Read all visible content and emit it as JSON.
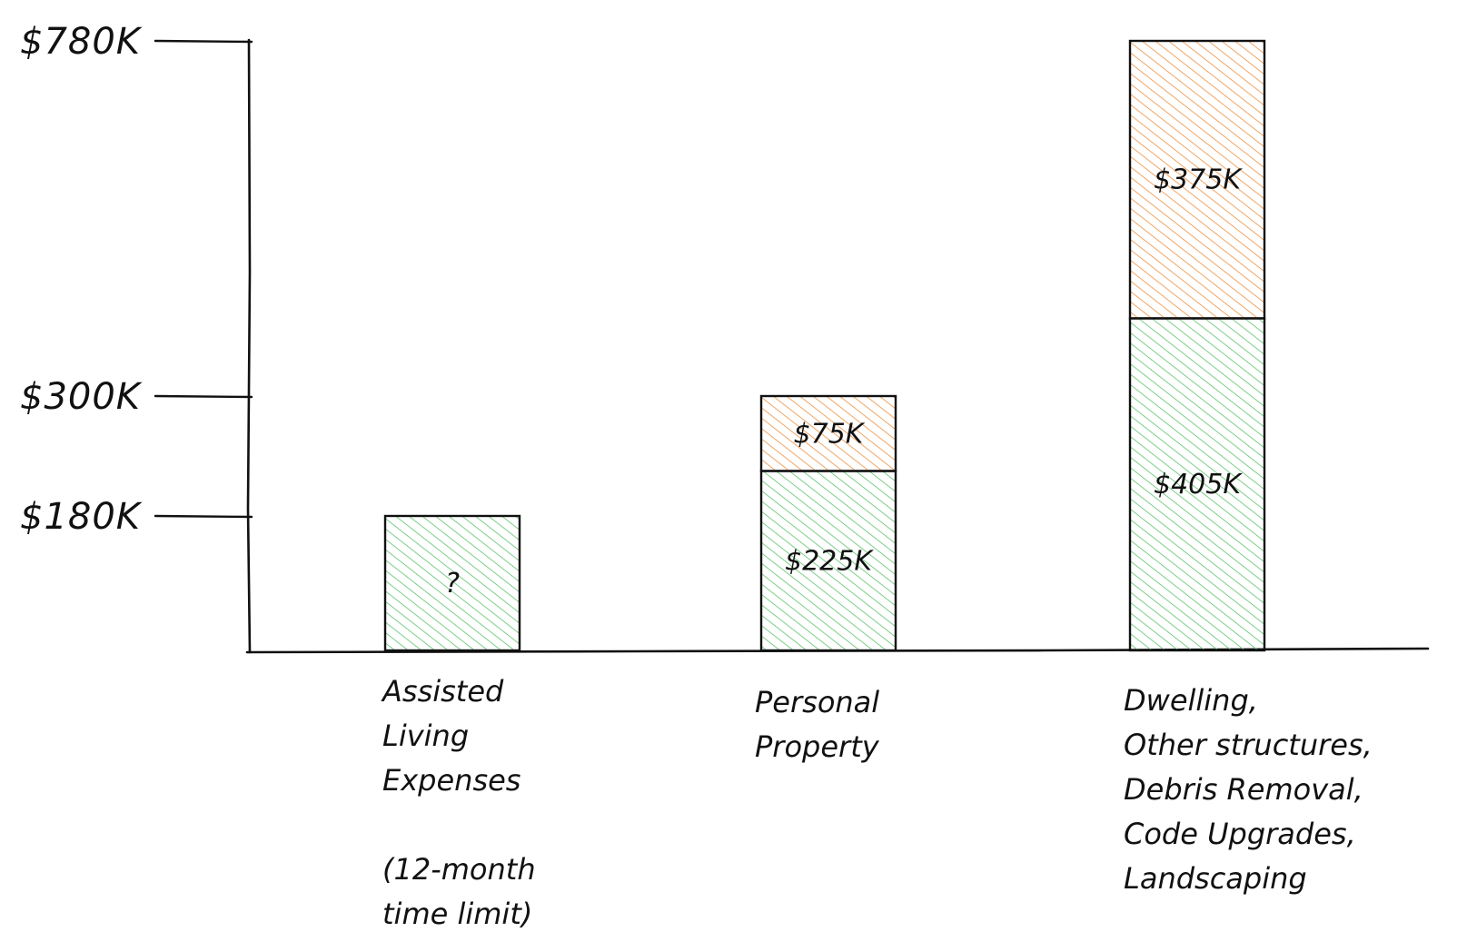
{
  "chart_data": {
    "type": "bar",
    "stacked": true,
    "categories": [
      [
        "Assisted",
        "Living",
        "Expenses",
        "",
        "(12-month",
        "time limit)"
      ],
      [
        "Personal",
        "Property"
      ],
      [
        "Dwelling,",
        "Other structures,",
        "Debris Removal,",
        "Code Upgrades,",
        "Landscaping"
      ]
    ],
    "y_ticks": [
      {
        "value": 180,
        "label": "$180K"
      },
      {
        "value": 300,
        "label": "$300K"
      },
      {
        "value": 780,
        "label": "$780K"
      }
    ],
    "series": [
      {
        "color": "#5cc26a",
        "values": [
          180,
          225,
          405
        ],
        "labels": [
          "?",
          "$225K",
          "$405K"
        ]
      },
      {
        "color": "#ef8f3c",
        "values": [
          0,
          75,
          375
        ],
        "labels": [
          "",
          "$75K",
          "$375K"
        ]
      }
    ],
    "title": "",
    "xlabel": "",
    "ylabel": "",
    "grid": false,
    "legend": "none",
    "style": "hand-drawn hatched"
  }
}
